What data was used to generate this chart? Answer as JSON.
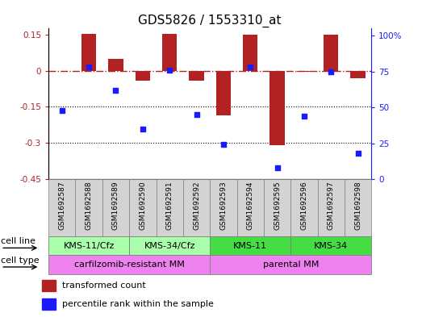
{
  "title": "GDS5826 / 1553310_at",
  "samples": [
    "GSM1692587",
    "GSM1692588",
    "GSM1692589",
    "GSM1692590",
    "GSM1692591",
    "GSM1692592",
    "GSM1692593",
    "GSM1692594",
    "GSM1692595",
    "GSM1692596",
    "GSM1692597",
    "GSM1692598"
  ],
  "transformed_count": [
    -0.002,
    0.152,
    0.05,
    -0.04,
    0.152,
    -0.04,
    -0.185,
    0.148,
    -0.31,
    -0.005,
    0.148,
    -0.03
  ],
  "percentile_rank": [
    48,
    78,
    62,
    35,
    76,
    45,
    24,
    78,
    8,
    44,
    75,
    18
  ],
  "ylim_left": [
    -0.45,
    0.175
  ],
  "ylim_right": [
    0,
    105
  ],
  "yticks_left": [
    0.15,
    0.0,
    -0.15,
    -0.3,
    -0.45
  ],
  "ytick_labels_left": [
    "0.15",
    "0",
    "-0.15",
    "-0.3",
    "-0.45"
  ],
  "yticks_right": [
    100,
    75,
    50,
    25,
    0
  ],
  "ytick_labels_right": [
    "100%",
    "75",
    "50",
    "25",
    "0"
  ],
  "hline_y": 0.0,
  "dotted_hlines": [
    -0.15,
    -0.3
  ],
  "bar_color": "#b22222",
  "dot_color": "#1a1aff",
  "cell_line_groups": [
    {
      "label": "KMS-11/Cfz",
      "start": 0,
      "end": 2,
      "color": "#aaffaa"
    },
    {
      "label": "KMS-34/Cfz",
      "start": 3,
      "end": 5,
      "color": "#aaffaa"
    },
    {
      "label": "KMS-11",
      "start": 6,
      "end": 8,
      "color": "#44dd44"
    },
    {
      "label": "KMS-34",
      "start": 9,
      "end": 11,
      "color": "#44dd44"
    }
  ],
  "cell_type_groups": [
    {
      "label": "carfilzomib-resistant MM",
      "start": 0,
      "end": 5,
      "color": "#ee82ee"
    },
    {
      "label": "parental MM",
      "start": 6,
      "end": 11,
      "color": "#ee82ee"
    }
  ],
  "legend_items": [
    {
      "label": "transformed count",
      "color": "#b22222"
    },
    {
      "label": "percentile rank within the sample",
      "color": "#1a1aff"
    }
  ],
  "bar_width": 0.55,
  "dot_size": 18,
  "title_fontsize": 11,
  "tick_fontsize": 7.5,
  "sample_fontsize": 6.5,
  "label_fontsize": 8,
  "annotation_fontsize": 8
}
